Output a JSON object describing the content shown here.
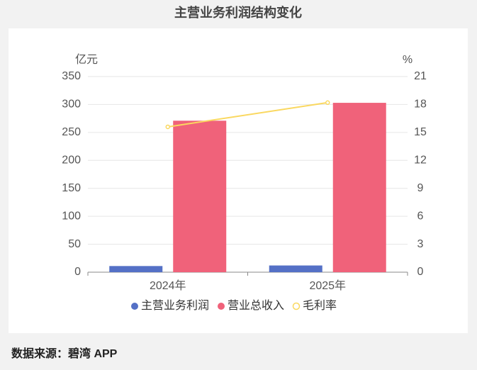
{
  "chart_data": {
    "type": "bar",
    "title": "主营业务利润结构变化",
    "y_label": "亿元",
    "y2_label": "%",
    "categories": [
      "2024年",
      "2025年"
    ],
    "series": [
      {
        "name": "主营业务利润",
        "color": "#5470c6",
        "type": "bar",
        "values": [
          11,
          12
        ]
      },
      {
        "name": "营业总收入",
        "color": "#f0627a",
        "type": "bar",
        "values": [
          271,
          303
        ]
      },
      {
        "name": "毛利率",
        "color": "#fad860",
        "type": "line",
        "axis": "y2",
        "values": [
          15.6,
          18.2
        ]
      }
    ],
    "ylim": [
      0,
      350
    ],
    "yticks": [
      0,
      50,
      100,
      150,
      200,
      250,
      300,
      350
    ],
    "y2lim": [
      0,
      21
    ],
    "y2ticks": [
      0,
      3,
      6,
      9,
      12,
      15,
      18,
      21
    ],
    "grid": true,
    "legend": "bottom"
  },
  "footer": {
    "source": "数据来源：碧湾 APP"
  }
}
